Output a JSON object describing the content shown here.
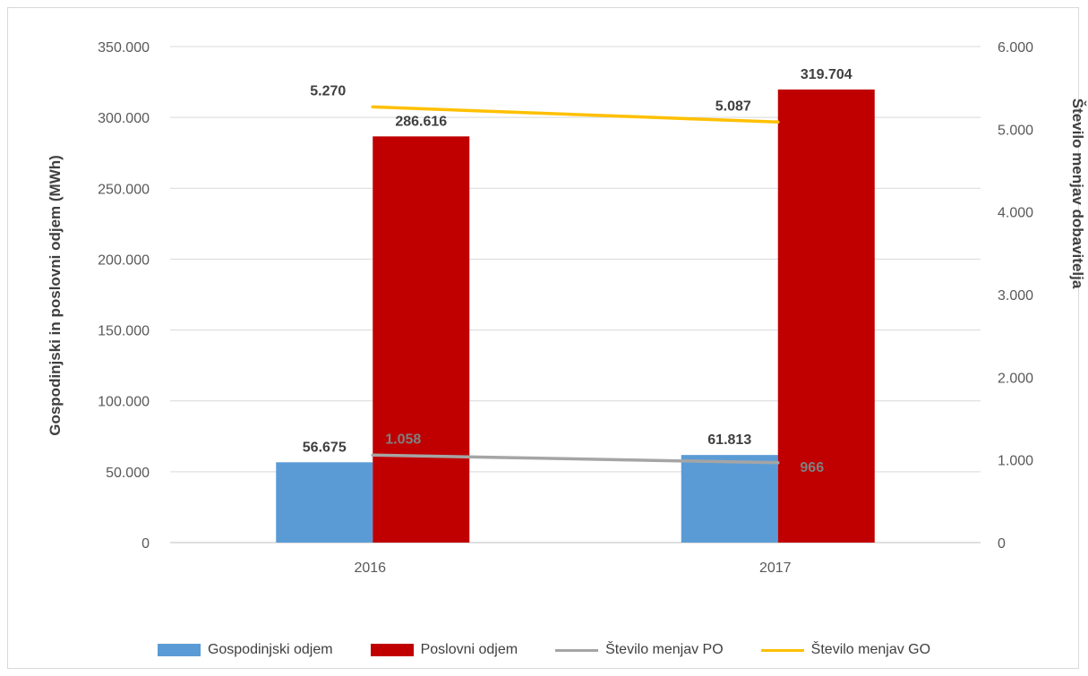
{
  "chart_data": {
    "type": "bar",
    "categories": [
      "2016",
      "2017"
    ],
    "series": [
      {
        "name": "Gospodinjski odjem",
        "kind": "bar",
        "axis": "left",
        "color": "#5b9bd5",
        "values": [
          56675,
          61813
        ],
        "labels": [
          "56.675",
          "61.813"
        ]
      },
      {
        "name": "Poslovni odjem",
        "kind": "bar",
        "axis": "left",
        "color": "#c00000",
        "values": [
          286616,
          319704
        ],
        "labels": [
          "286.616",
          "319.704"
        ]
      },
      {
        "name": "Število menjav PO",
        "kind": "line",
        "axis": "right",
        "color": "#a5a5a5",
        "values": [
          1058,
          966
        ],
        "labels": [
          "1.058",
          "966"
        ]
      },
      {
        "name": "Število menjav GO",
        "kind": "line",
        "axis": "right",
        "color": "#ffc000",
        "values": [
          5270,
          5087
        ],
        "labels": [
          "5.270",
          "5.087"
        ]
      }
    ],
    "ylabel": "Gospodinjski in poslovni odjem (MWh)",
    "y2label": "Število menjav dobavitelja",
    "ylim": [
      0,
      350000
    ],
    "y2lim": [
      0,
      6000
    ],
    "yticks": [
      "0",
      "50.000",
      "100.000",
      "150.000",
      "200.000",
      "250.000",
      "300.000",
      "350.000"
    ],
    "y2ticks": [
      "0",
      "1.000",
      "2.000",
      "3.000",
      "4.000",
      "5.000",
      "6.000"
    ],
    "grid": true,
    "legend": "bottom"
  }
}
